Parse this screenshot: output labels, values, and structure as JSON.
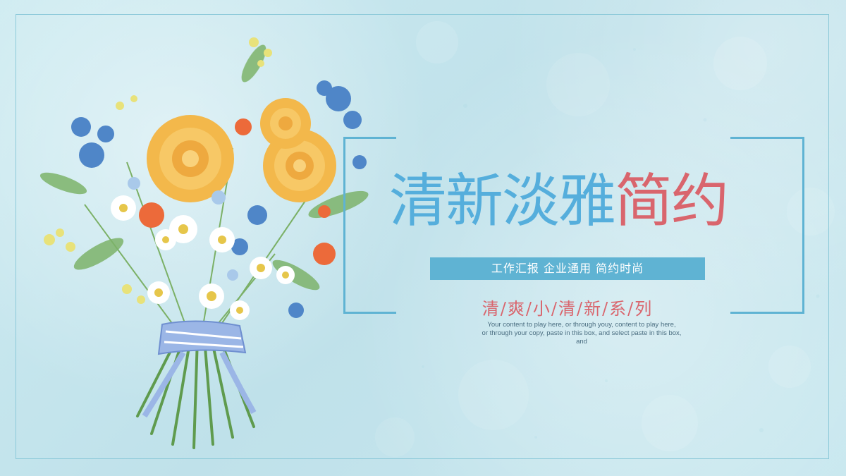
{
  "slide": {
    "title_part1": "清新淡雅",
    "title_part2": "简约",
    "subtitle": "工作汇报 企业通用 简约时尚",
    "series": "清/爽/小/清/新/系/列",
    "description_lines": [
      "Your content to play here, or through youy, content to play here,",
      "or through your copy, paste in this box, and select paste in this box,",
      "and"
    ]
  },
  "colors": {
    "background": "#c7e6ee",
    "accent_blue": "#5fb3d3",
    "title_blue": "#55aedc",
    "title_red": "#d9656d",
    "frame": "#8cc9d9"
  },
  "images": {
    "illustration": "watercolor-flower-bouquet"
  }
}
